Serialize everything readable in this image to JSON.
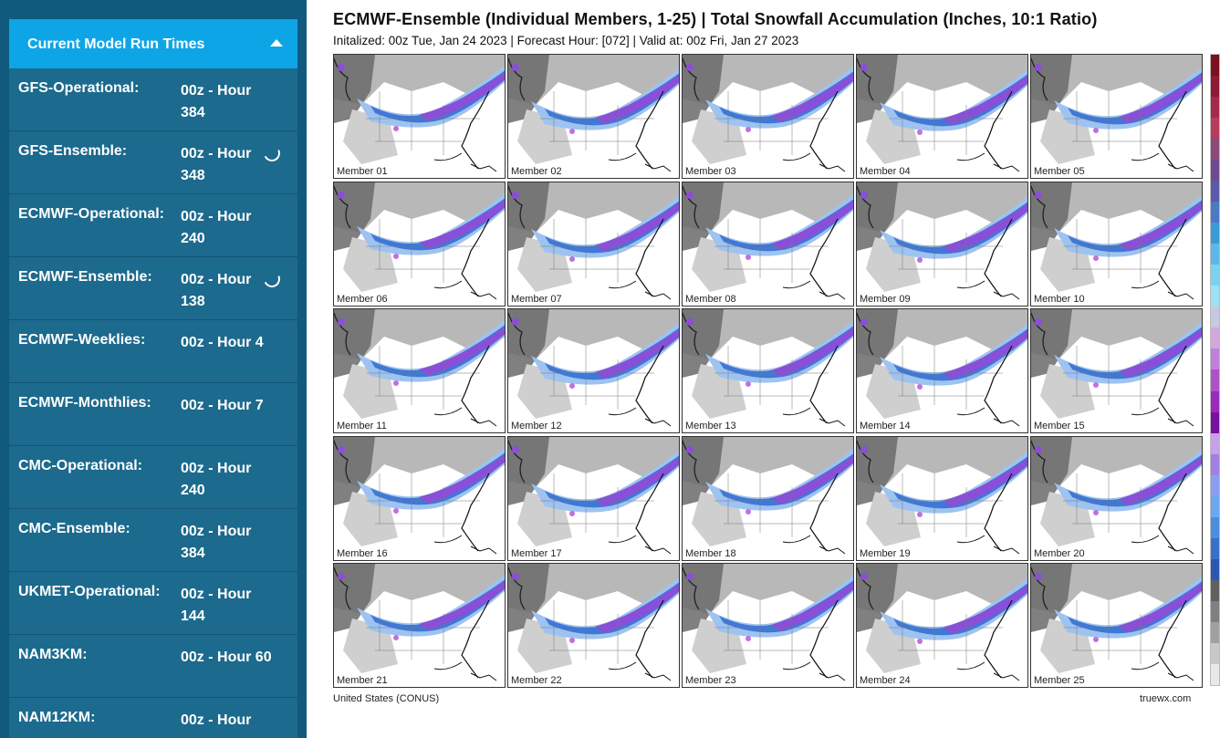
{
  "sidebar": {
    "header": "Current Model Run Times",
    "models": [
      {
        "name": "GFS-Operational:",
        "time": "00z - Hour 384",
        "loading": false
      },
      {
        "name": "GFS-Ensemble:",
        "time": "00z - Hour 348",
        "loading": true
      },
      {
        "name": "ECMWF-Operational:",
        "time": "00z - Hour 240",
        "loading": false
      },
      {
        "name": "ECMWF-Ensemble:",
        "time": "00z - Hour 138",
        "loading": true
      },
      {
        "name": "ECMWF-Weeklies:",
        "time": "00z - Hour 4",
        "loading": false
      },
      {
        "name": "ECMWF-Monthlies:",
        "time": "00z - Hour 7",
        "loading": false
      },
      {
        "name": "CMC-Operational:",
        "time": "00z - Hour 240",
        "loading": false
      },
      {
        "name": "CMC-Ensemble:",
        "time": "00z - Hour 384",
        "loading": false
      },
      {
        "name": "UKMET-Operational:",
        "time": "00z - Hour 144",
        "loading": false
      },
      {
        "name": "NAM3KM:",
        "time": "00z - Hour 60",
        "loading": false
      },
      {
        "name": "NAM12KM:",
        "time": "00z - Hour",
        "loading": false
      }
    ]
  },
  "chart": {
    "title": "ECMWF-Ensemble (Individual Members, 1-25) | Total Snowfall Accumulation (Inches, 10:1 Ratio)",
    "subtitle": "Initalized: 00z Tue, Jan 24 2023  |  Forecast Hour: [072]  |  Valid at: 00z Fri, Jan 27 2023",
    "members": [
      "Member 01",
      "Member 02",
      "Member 03",
      "Member 04",
      "Member 05",
      "Member 06",
      "Member 07",
      "Member 08",
      "Member 09",
      "Member 10",
      "Member 11",
      "Member 12",
      "Member 13",
      "Member 14",
      "Member 15",
      "Member 16",
      "Member 17",
      "Member 18",
      "Member 19",
      "Member 20",
      "Member 21",
      "Member 22",
      "Member 23",
      "Member 24",
      "Member 25"
    ],
    "region": "United States (CONUS)",
    "credit": "truewx.com",
    "colors": {
      "snow_light": "#9ec3f0",
      "snow_mid": "#3f78d6",
      "snow_heavy": "#8a4fd8",
      "snow_extreme": "#c070e0",
      "terrain": "#8c8c8c"
    },
    "legend_colors": [
      "#7a1020",
      "#8e1a35",
      "#a32a4a",
      "#b63c60",
      "#8a4a7a",
      "#6f4a8f",
      "#5a5aa8",
      "#4a7ac4",
      "#3a9ad8",
      "#5ab8ea",
      "#7cd0f2",
      "#a0e0f6",
      "#c8c8e0",
      "#d0a8dc",
      "#c080d8",
      "#b050c8",
      "#9a2ab8",
      "#7a10a0",
      "#c8a0e8",
      "#a080e0",
      "#8a9ef0",
      "#6aa8f0",
      "#4a8ee0",
      "#3a70c8",
      "#2a58b0",
      "#606060",
      "#808080",
      "#a0a0a0",
      "#c8c8c8",
      "#e8e8e8"
    ]
  }
}
